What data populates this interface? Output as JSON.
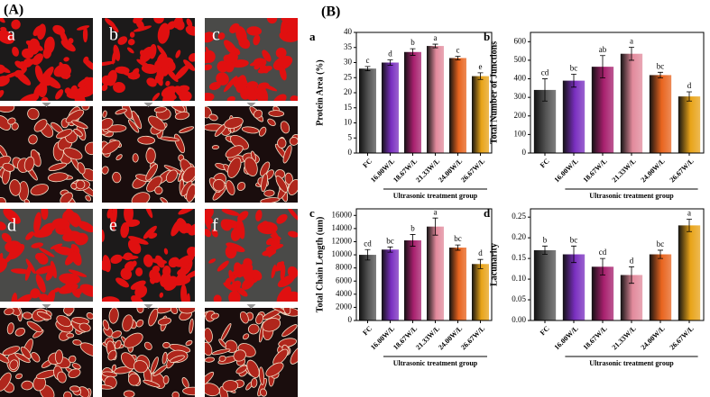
{
  "panel_a": {
    "label": "(A)",
    "images": [
      "a",
      "b",
      "c",
      "d",
      "e",
      "f"
    ]
  },
  "panel_b": {
    "label": "(B)"
  },
  "chart_data": [
    {
      "type": "bar",
      "panel": "a",
      "ylabel": "Protein Area (%)",
      "xlabel": "Ultrasonic treatment group",
      "categories": [
        "FC",
        "16.00W/L",
        "18.67W/L",
        "21.33W/L",
        "24.00W/L",
        "26.67W/L"
      ],
      "values": [
        28,
        30,
        33.5,
        35.5,
        31.5,
        25.5
      ],
      "errors": [
        0.7,
        0.9,
        1.1,
        0.6,
        0.6,
        1.1
      ],
      "annotations": [
        "c",
        "d",
        "b",
        "a",
        "c",
        "e"
      ],
      "colors": [
        "#555555",
        "#7a2fc0",
        "#a8206e",
        "#e28a9c",
        "#e8641e",
        "#e8a318"
      ],
      "ylim": [
        0,
        40
      ],
      "yticks": [
        0,
        5,
        10,
        15,
        20,
        25,
        30,
        35,
        40
      ]
    },
    {
      "type": "bar",
      "panel": "b",
      "ylabel": "Total Number of Junctions",
      "xlabel": "Ultrasonic treatment group",
      "categories": [
        "FC",
        "16.00W/L",
        "18.67W/L",
        "21.33W/L",
        "24.00W/L",
        "26.67W/L"
      ],
      "values": [
        340,
        390,
        465,
        535,
        420,
        305
      ],
      "errors": [
        60,
        35,
        60,
        35,
        15,
        25
      ],
      "annotations": [
        "cd",
        "bc",
        "ab",
        "a",
        "bc",
        "d"
      ],
      "colors": [
        "#555555",
        "#7a2fc0",
        "#a8206e",
        "#e28a9c",
        "#e8641e",
        "#e8a318"
      ],
      "ylim": [
        0,
        650
      ],
      "yticks": [
        0,
        100,
        200,
        300,
        400,
        500,
        600
      ]
    },
    {
      "type": "bar",
      "panel": "c",
      "ylabel": "Total Chain Length (um)",
      "xlabel": "Ultrasonic treatment group",
      "categories": [
        "FC",
        "16.00W/L",
        "18.67W/L",
        "21.33W/L",
        "24.00W/L",
        "26.67W/L"
      ],
      "values": [
        10000,
        10800,
        12200,
        14300,
        11100,
        8600
      ],
      "errors": [
        800,
        400,
        900,
        1300,
        400,
        700
      ],
      "annotations": [
        "cd",
        "bc",
        "b",
        "a",
        "bc",
        "d"
      ],
      "colors": [
        "#555555",
        "#7a2fc0",
        "#a8206e",
        "#e28a9c",
        "#e8641e",
        "#e8a318"
      ],
      "ylim": [
        0,
        17000
      ],
      "yticks": [
        0,
        2000,
        4000,
        6000,
        8000,
        10000,
        12000,
        14000,
        16000
      ]
    },
    {
      "type": "bar",
      "panel": "d",
      "ylabel": "Lacunarity",
      "xlabel": "Ultrasonic treatment group",
      "categories": [
        "FC",
        "16.00W/L",
        "18.67W/L",
        "21.33W/L",
        "24.00W/L",
        "26.67W/L"
      ],
      "values": [
        0.17,
        0.16,
        0.13,
        0.11,
        0.16,
        0.23
      ],
      "errors": [
        0.01,
        0.02,
        0.02,
        0.02,
        0.01,
        0.015
      ],
      "annotations": [
        "b",
        "bc",
        "cd",
        "d",
        "bc",
        "a"
      ],
      "colors": [
        "#555555",
        "#7a2fc0",
        "#a8206e",
        "#e28a9c",
        "#e8641e",
        "#e8a318"
      ],
      "ylim": [
        0,
        0.27
      ],
      "yticks": [
        {
          "value": 0,
          "label": "0.00"
        },
        {
          "value": 0.05,
          "label": "0.05"
        },
        {
          "value": 0.1,
          "label": "0.10"
        },
        {
          "value": 0.15,
          "label": "0.15"
        },
        {
          "value": 0.2,
          "label": "0.20"
        },
        {
          "value": 0.25,
          "label": "0.25"
        }
      ]
    }
  ]
}
